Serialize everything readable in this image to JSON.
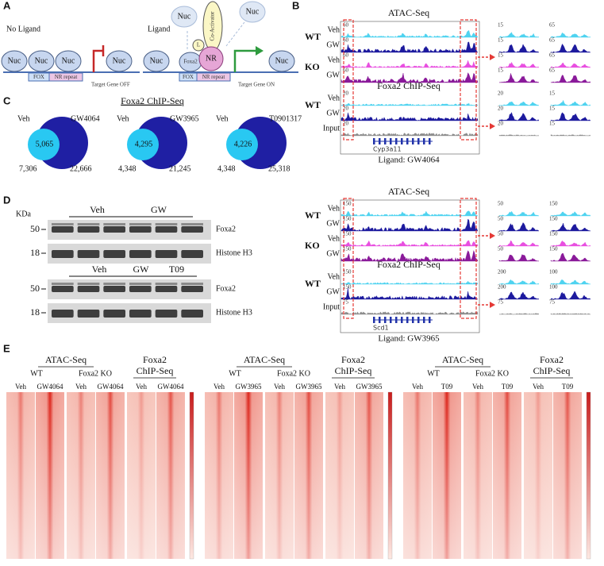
{
  "panel_a": {
    "label": "A",
    "no_ligand": {
      "title": "No Ligand",
      "nucs": [
        "Nuc",
        "Nuc",
        "Nuc",
        "Nuc"
      ],
      "fox": "FOX",
      "nr_repeat": "NR repeat",
      "target": "Target Gene OFF"
    },
    "ligand": {
      "title": "Ligand",
      "nucs": [
        "Nuc",
        "Nuc"
      ],
      "faded_nucs": [
        "Nuc",
        "Nuc"
      ],
      "foxa2": "Foxa2",
      "l": "L",
      "nr": "NR",
      "coactivator": "Co-Activator",
      "fox": "FOX",
      "nr_repeat": "NR repeat",
      "target": "Target Gene ON"
    }
  },
  "panel_b": {
    "label": "B",
    "blocks": [
      {
        "atac_title": "ATAC-Seq",
        "chip_title": "Foxa2 ChIP-Seq",
        "gene": "Cyp3a11",
        "ligand": "Ligand: GW4064",
        "atac_groups": [
          {
            "genotype": "WT",
            "rows": [
              {
                "name": "Veh",
                "scale": "60",
                "zoom_scales": [
                  "15",
                  "65"
                ]
              },
              {
                "name": "GW",
                "scale": "60",
                "zoom_scales": [
                  "15",
                  "65"
                ]
              }
            ]
          },
          {
            "genotype": "KO",
            "rows": [
              {
                "name": "Veh",
                "scale": "60",
                "zoom_scales": [
                  "15",
                  "65"
                ]
              },
              {
                "name": "GW",
                "scale": "60",
                "zoom_scales": [
                  "15",
                  "65"
                ]
              }
            ]
          }
        ],
        "chip_groups": [
          {
            "genotype": "WT",
            "rows": [
              {
                "name": "Veh",
                "scale": "20",
                "zoom_scales": [
                  "20",
                  "15"
                ]
              },
              {
                "name": "GW",
                "scale": "20",
                "zoom_scales": [
                  "20",
                  "15"
                ]
              }
            ]
          }
        ],
        "input": {
          "name": "Input",
          "scale": "20",
          "zoom_scales": [
            "20",
            "15"
          ]
        }
      },
      {
        "atac_title": "ATAC-Seq",
        "chip_title": "Foxa2 ChIP-Seq",
        "gene": "Scd1",
        "ligand": "Ligand: GW3965",
        "atac_groups": [
          {
            "genotype": "WT",
            "rows": [
              {
                "name": "Veh",
                "scale": "150",
                "zoom_scales": [
                  "50",
                  "150"
                ]
              },
              {
                "name": "GW",
                "scale": "150",
                "zoom_scales": [
                  "50",
                  "150"
                ]
              }
            ]
          },
          {
            "genotype": "KO",
            "rows": [
              {
                "name": "Veh",
                "scale": "150",
                "zoom_scales": [
                  "50",
                  "150"
                ]
              },
              {
                "name": "GW",
                "scale": "150",
                "zoom_scales": [
                  "50",
                  "150"
                ]
              }
            ]
          }
        ],
        "chip_groups": [
          {
            "genotype": "WT",
            "rows": [
              {
                "name": "Veh",
                "scale": "150",
                "zoom_scales": [
                  "200",
                  "100"
                ]
              },
              {
                "name": "GW",
                "scale": "150",
                "zoom_scales": [
                  "200",
                  "100"
                ]
              }
            ]
          }
        ],
        "input": {
          "name": "Input",
          "scale": "75",
          "zoom_scales": [
            "75",
            "75"
          ]
        }
      }
    ]
  },
  "panel_c": {
    "label": "C",
    "title": "Foxa2 ChIP-Seq",
    "venns": [
      {
        "left": "Veh",
        "right": "GW4064",
        "overlap": "5,065",
        "left_count": "7,306",
        "right_count": "22,666"
      },
      {
        "left": "Veh",
        "right": "GW3965",
        "overlap": "4,295",
        "left_count": "4,348",
        "right_count": "21,245"
      },
      {
        "left": "Veh",
        "right": "T0901317",
        "overlap": "4,226",
        "left_count": "4,348",
        "right_count": "25,318"
      }
    ]
  },
  "panel_d": {
    "label": "D",
    "unit": "KDa",
    "blots": [
      {
        "groups": [
          "Veh",
          "GW"
        ],
        "rows": [
          {
            "marker": "50",
            "protein": "Foxa2"
          },
          {
            "marker": "18",
            "protein": "Histone H3"
          }
        ]
      },
      {
        "groups": [
          "Veh",
          "GW",
          "T09"
        ],
        "rows": [
          {
            "marker": "50",
            "protein": "Foxa2"
          },
          {
            "marker": "18",
            "protein": "Histone H3"
          }
        ]
      }
    ]
  },
  "panel_e": {
    "label": "E",
    "heatmaps": [
      {
        "atac": "ATAC-Seq",
        "wt": "WT",
        "ko": "Foxa2 KO",
        "chip": [
          "Foxa2",
          "ChIP-Seq"
        ],
        "columns": [
          "Veh",
          "GW4064",
          "Veh",
          "GW4064",
          "Veh",
          "GW4064"
        ]
      },
      {
        "atac": "ATAC-Seq",
        "wt": "WT",
        "ko": "Foxa2 KO",
        "chip": [
          "Foxa2",
          "ChIP-Seq"
        ],
        "columns": [
          "Veh",
          "GW3965",
          "Veh",
          "GW3965",
          "Veh",
          "GW3965"
        ]
      },
      {
        "atac": "ATAC-Seq",
        "wt": "WT",
        "ko": "Foxa2 KO",
        "chip": [
          "Foxa2",
          "ChIP-Seq"
        ],
        "columns": [
          "Veh",
          "T09",
          "Veh",
          "T09",
          "Veh",
          "T09"
        ]
      }
    ]
  }
}
